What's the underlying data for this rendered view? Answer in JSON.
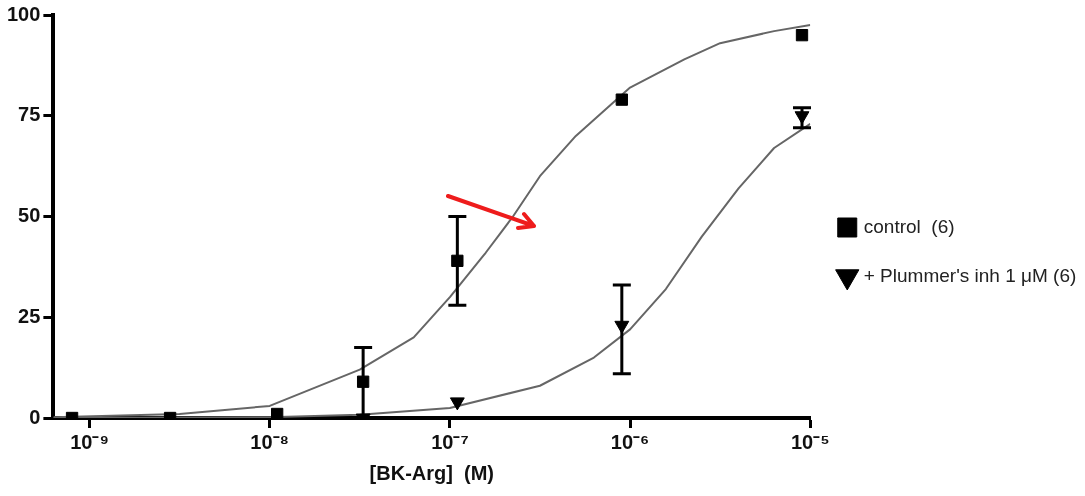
{
  "chart_data": {
    "type": "scatter",
    "xlabel": "[BK-Arg]  (M)",
    "log": "x",
    "grid": false,
    "legend": "right",
    "xlim": [
      6.3e-10,
      1e-05
    ],
    "xticks": [
      {
        "value": 1e-09,
        "label": "10⁻⁹"
      },
      {
        "value": 1e-08,
        "label": "10⁻⁸"
      },
      {
        "value": 1e-07,
        "label": "10⁻⁷"
      },
      {
        "value": 1e-06,
        "label": "10⁻⁶"
      },
      {
        "value": 1e-05,
        "label": "10⁻⁵"
      }
    ],
    "ylim": [
      0,
      100
    ],
    "yticks": [
      0,
      25,
      50,
      75,
      100
    ],
    "series": [
      {
        "name": "control  (6)",
        "marker": "square",
        "color": "#000000",
        "x": [
          8e-10,
          2.8e-09,
          1.1e-08,
          3.3e-08,
          1.1e-07,
          9e-07,
          9e-06
        ],
        "values": [
          0,
          0,
          1,
          9,
          39,
          79,
          95
        ],
        "errors": [
          null,
          null,
          null,
          [
            0,
            17.5
          ],
          [
            28,
            50
          ],
          null,
          null
        ]
      },
      {
        "name": "+ Plummer's inh 1 μM (6)",
        "marker": "triangle",
        "color": "#000000",
        "x": [
          3.3e-08,
          1.1e-07,
          9e-07,
          9e-06
        ],
        "values": [
          0,
          4,
          23,
          75
        ],
        "errors": [
          null,
          null,
          [
            11,
            33
          ],
          [
            72,
            77
          ]
        ]
      },
      {
        "type": "line",
        "marker": "none",
        "color": "#666666",
        "x": [
          6.3e-10,
          3.16e-09,
          1e-08,
          3.16e-08,
          6.3e-08,
          1e-07,
          1.58e-07,
          2.24e-07,
          3.16e-07,
          5e-07,
          1e-06,
          2e-06,
          3.16e-06,
          6.3e-06,
          1e-05
        ],
        "values": [
          0.2,
          1,
          3,
          12,
          20,
          30,
          41,
          50,
          60,
          70,
          82,
          89,
          93,
          96,
          97.5
        ]
      },
      {
        "type": "line",
        "marker": "none",
        "color": "#666666",
        "x": [
          6.3e-10,
          1e-08,
          3.16e-08,
          1e-07,
          3.16e-07,
          6.3e-07,
          1e-06,
          1.58e-06,
          2.5e-06,
          4e-06,
          6.3e-06,
          1e-05
        ],
        "values": [
          0,
          0.2,
          0.8,
          2.5,
          8,
          15,
          22,
          32,
          45,
          57,
          67,
          73
        ]
      }
    ]
  }
}
